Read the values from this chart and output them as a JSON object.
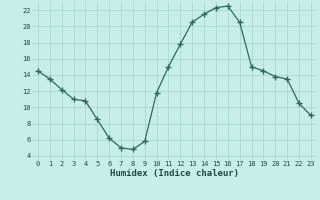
{
  "x": [
    0,
    1,
    2,
    3,
    4,
    5,
    6,
    7,
    8,
    9,
    10,
    11,
    12,
    13,
    14,
    15,
    16,
    17,
    18,
    19,
    20,
    21,
    22,
    23
  ],
  "y": [
    14.5,
    13.5,
    12.2,
    11.0,
    10.8,
    8.5,
    6.2,
    5.0,
    4.8,
    5.8,
    11.8,
    15.0,
    17.8,
    20.5,
    21.5,
    22.3,
    22.5,
    20.5,
    15.0,
    14.5,
    13.8,
    13.5,
    10.5,
    9.0
  ],
  "xlabel": "Humidex (Indice chaleur)",
  "bg_color": "#c8eeec",
  "line_color": "#2a6b62",
  "marker_color": "#2a6b62",
  "grid_color": "#a8d8d4",
  "tick_label_color": "#1e4a44",
  "xlabel_color": "#1e4a44",
  "xlim": [
    -0.5,
    23.5
  ],
  "ylim": [
    3.5,
    23.0
  ],
  "yticks": [
    4,
    6,
    8,
    10,
    12,
    14,
    16,
    18,
    20,
    22
  ],
  "xticks": [
    0,
    1,
    2,
    3,
    4,
    5,
    6,
    7,
    8,
    9,
    10,
    11,
    12,
    13,
    14,
    15,
    16,
    17,
    18,
    19,
    20,
    21,
    22,
    23
  ]
}
